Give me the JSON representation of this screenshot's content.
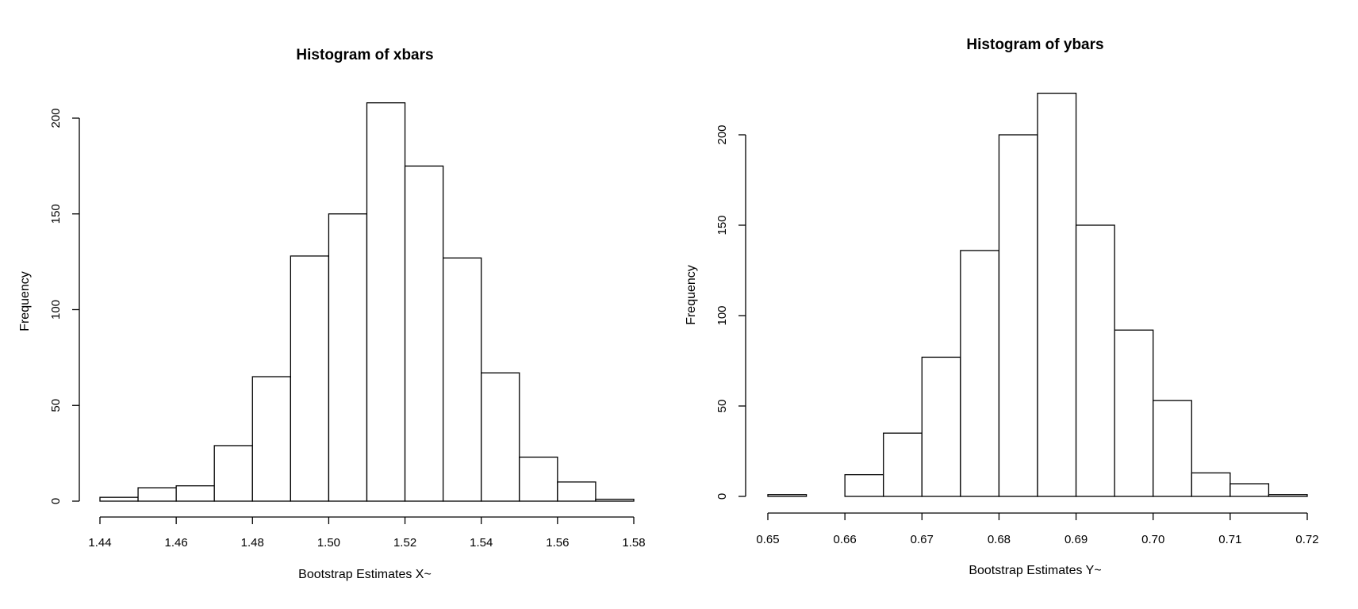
{
  "chart_data": [
    {
      "type": "bar",
      "title": "Histogram of xbars",
      "xlabel": "Bootstrap Estimates X~",
      "ylabel": "Frequency",
      "bin_edges": [
        1.44,
        1.45,
        1.46,
        1.47,
        1.48,
        1.49,
        1.5,
        1.51,
        1.52,
        1.53,
        1.54,
        1.55,
        1.56,
        1.57,
        1.58
      ],
      "values": [
        2,
        7,
        8,
        29,
        65,
        128,
        150,
        208,
        175,
        127,
        67,
        23,
        10,
        1
      ],
      "xlim": [
        1.44,
        1.58
      ],
      "ylim": [
        0,
        200
      ],
      "x_ticks": [
        "1.44",
        "1.46",
        "1.48",
        "1.50",
        "1.52",
        "1.54",
        "1.56",
        "1.58"
      ],
      "y_ticks": [
        "0",
        "50",
        "100",
        "150",
        "200"
      ],
      "grid": false
    },
    {
      "type": "bar",
      "title": "Histogram of ybars",
      "xlabel": "Bootstrap Estimates Y~",
      "ylabel": "Frequency",
      "bin_edges": [
        0.65,
        0.655,
        0.66,
        0.665,
        0.67,
        0.675,
        0.68,
        0.685,
        0.69,
        0.695,
        0.7,
        0.705,
        0.71,
        0.715,
        0.72
      ],
      "values": [
        1,
        0,
        12,
        35,
        77,
        136,
        200,
        223,
        150,
        92,
        53,
        13,
        7,
        1
      ],
      "xlim": [
        0.65,
        0.72
      ],
      "ylim": [
        0,
        200
      ],
      "x_ticks": [
        "0.65",
        "0.66",
        "0.67",
        "0.68",
        "0.69",
        "0.70",
        "0.71",
        "0.72"
      ],
      "y_ticks": [
        "0",
        "50",
        "100",
        "150",
        "200"
      ],
      "grid": false
    }
  ]
}
